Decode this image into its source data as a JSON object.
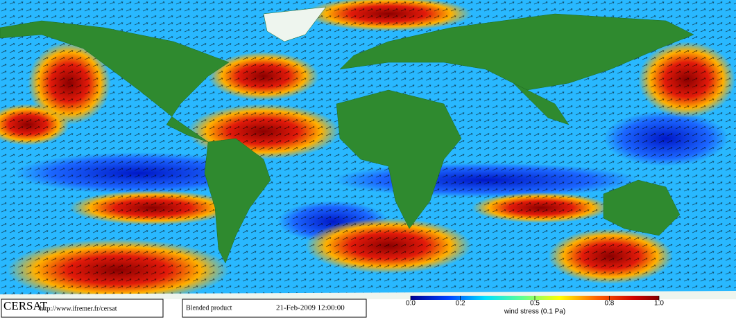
{
  "footer": {
    "logo": "CERSAT",
    "url": "http://www.ifremer.fr/cersat",
    "product": "Blended product",
    "date": "21-Feb-2009 12:00:00"
  },
  "colorbar": {
    "ticks": [
      {
        "value": 0,
        "label": "0.0"
      },
      0.2,
      0.5,
      0.8,
      {
        "value": 1,
        "label": "1.0"
      }
    ],
    "range": [
      0,
      1
    ],
    "label": "wind stress (0.1 Pa)"
  }
}
